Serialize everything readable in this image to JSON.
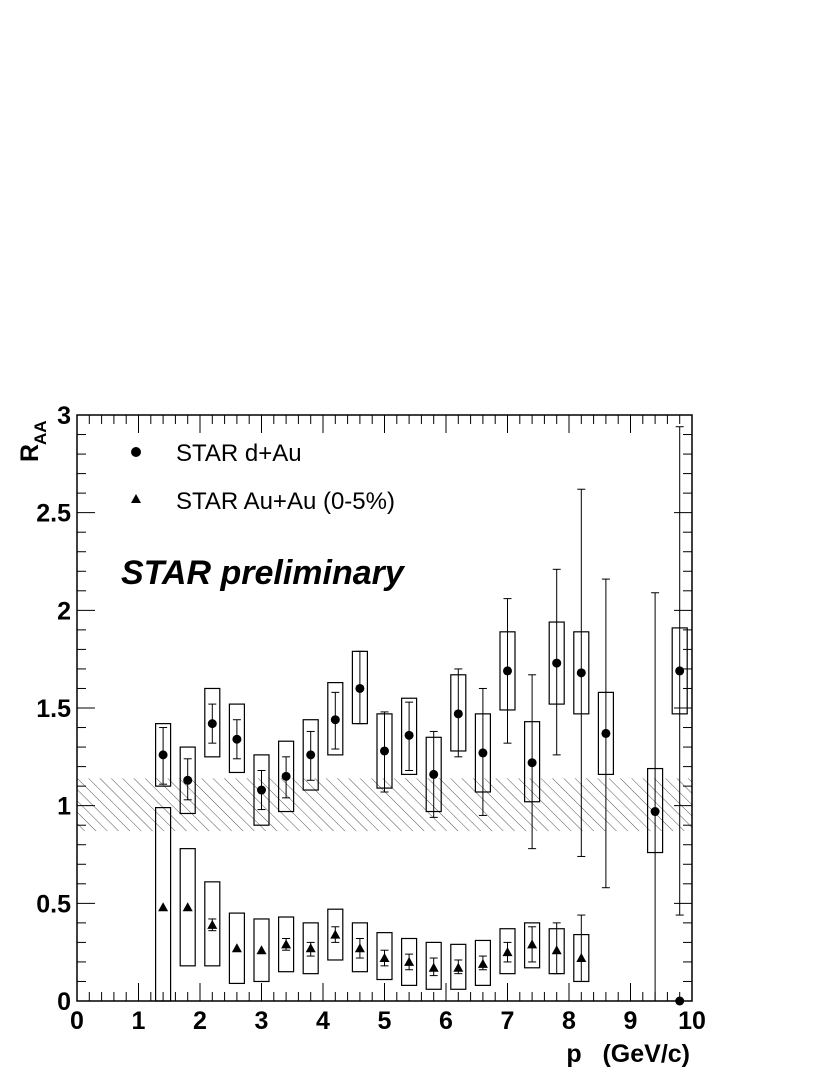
{
  "chart_data": {
    "type": "scatter",
    "ylabel_main": "R",
    "ylabel_sub": "AA",
    "xlabel": "p   (GeV/c)",
    "xlim": [
      0,
      10
    ],
    "ylim": [
      0,
      3
    ],
    "x_ticks": [
      "0",
      "1",
      "2",
      "3",
      "4",
      "5",
      "6",
      "7",
      "8",
      "9",
      "10"
    ],
    "y_ticks": [
      "0",
      "0.5",
      "1",
      "1.5",
      "2",
      "2.5",
      "3"
    ],
    "annotation": "STAR preliminary",
    "normalization_band": {
      "y_low": 0.87,
      "y_high": 1.14
    },
    "series": [
      {
        "name": "STAR d+Au",
        "marker": "circle",
        "points": [
          {
            "x": 1.4,
            "y": 1.26,
            "stat_lo": 1.11,
            "stat_hi": 1.4,
            "sys_lo": 1.1,
            "sys_hi": 1.42
          },
          {
            "x": 1.8,
            "y": 1.13,
            "stat_lo": 1.03,
            "stat_hi": 1.24,
            "sys_lo": 0.96,
            "sys_hi": 1.3
          },
          {
            "x": 2.2,
            "y": 1.42,
            "stat_lo": 1.32,
            "stat_hi": 1.52,
            "sys_lo": 1.25,
            "sys_hi": 1.6
          },
          {
            "x": 2.6,
            "y": 1.34,
            "stat_lo": 1.24,
            "stat_hi": 1.44,
            "sys_lo": 1.17,
            "sys_hi": 1.52
          },
          {
            "x": 3.0,
            "y": 1.08,
            "stat_lo": 0.98,
            "stat_hi": 1.18,
            "sys_lo": 0.9,
            "sys_hi": 1.26
          },
          {
            "x": 3.4,
            "y": 1.15,
            "stat_lo": 1.04,
            "stat_hi": 1.25,
            "sys_lo": 0.97,
            "sys_hi": 1.33
          },
          {
            "x": 3.8,
            "y": 1.26,
            "stat_lo": 1.13,
            "stat_hi": 1.38,
            "sys_lo": 1.08,
            "sys_hi": 1.44
          },
          {
            "x": 4.2,
            "y": 1.44,
            "stat_lo": 1.29,
            "stat_hi": 1.58,
            "sys_lo": 1.26,
            "sys_hi": 1.63
          },
          {
            "x": 4.6,
            "y": 1.6,
            "stat_lo": 1.42,
            "stat_hi": 1.79,
            "sys_lo": 1.42,
            "sys_hi": 1.79
          },
          {
            "x": 5.0,
            "y": 1.28,
            "stat_lo": 1.07,
            "stat_hi": 1.48,
            "sys_lo": 1.09,
            "sys_hi": 1.47
          },
          {
            "x": 5.4,
            "y": 1.36,
            "stat_lo": 1.18,
            "stat_hi": 1.53,
            "sys_lo": 1.16,
            "sys_hi": 1.55
          },
          {
            "x": 5.8,
            "y": 1.16,
            "stat_lo": 0.94,
            "stat_hi": 1.38,
            "sys_lo": 0.97,
            "sys_hi": 1.35
          },
          {
            "x": 6.2,
            "y": 1.47,
            "stat_lo": 1.25,
            "stat_hi": 1.7,
            "sys_lo": 1.28,
            "sys_hi": 1.67
          },
          {
            "x": 6.6,
            "y": 1.27,
            "stat_lo": 0.95,
            "stat_hi": 1.6,
            "sys_lo": 1.07,
            "sys_hi": 1.47
          },
          {
            "x": 7.0,
            "y": 1.69,
            "stat_lo": 1.32,
            "stat_hi": 2.06,
            "sys_lo": 1.49,
            "sys_hi": 1.89
          },
          {
            "x": 7.4,
            "y": 1.22,
            "stat_lo": 0.78,
            "stat_hi": 1.67,
            "sys_lo": 1.02,
            "sys_hi": 1.43
          },
          {
            "x": 7.8,
            "y": 1.73,
            "stat_lo": 1.26,
            "stat_hi": 2.21,
            "sys_lo": 1.52,
            "sys_hi": 1.94
          },
          {
            "x": 8.2,
            "y": 1.68,
            "stat_lo": 0.74,
            "stat_hi": 2.62,
            "sys_lo": 1.47,
            "sys_hi": 1.89
          },
          {
            "x": 8.6,
            "y": 1.37,
            "stat_lo": 0.58,
            "stat_hi": 2.16,
            "sys_lo": 1.16,
            "sys_hi": 1.58
          },
          {
            "x": 9.4,
            "y": 0.97,
            "stat_lo": 0.0,
            "stat_hi": 2.09,
            "sys_lo": 0.76,
            "sys_hi": 1.19
          },
          {
            "x": 9.8,
            "y": 1.69,
            "stat_lo": 0.44,
            "stat_hi": 2.94,
            "sys_lo": 1.47,
            "sys_hi": 1.91
          },
          {
            "x": 9.8,
            "y": 0.0
          }
        ]
      },
      {
        "name": "STAR Au+Au (0-5%)",
        "marker": "triangle",
        "points": [
          {
            "x": 1.4,
            "y": 0.48,
            "sys_lo": 0.0,
            "sys_hi": 0.99
          },
          {
            "x": 1.8,
            "y": 0.48,
            "sys_lo": 0.18,
            "sys_hi": 0.78
          },
          {
            "x": 2.2,
            "y": 0.39,
            "stat_lo": 0.36,
            "stat_hi": 0.42,
            "sys_lo": 0.18,
            "sys_hi": 0.61
          },
          {
            "x": 2.6,
            "y": 0.27,
            "sys_lo": 0.09,
            "sys_hi": 0.45
          },
          {
            "x": 3.0,
            "y": 0.26,
            "sys_lo": 0.1,
            "sys_hi": 0.42
          },
          {
            "x": 3.4,
            "y": 0.29,
            "stat_lo": 0.26,
            "stat_hi": 0.32,
            "sys_lo": 0.15,
            "sys_hi": 0.43
          },
          {
            "x": 3.8,
            "y": 0.27,
            "stat_lo": 0.23,
            "stat_hi": 0.3,
            "sys_lo": 0.14,
            "sys_hi": 0.4
          },
          {
            "x": 4.2,
            "y": 0.34,
            "stat_lo": 0.3,
            "stat_hi": 0.38,
            "sys_lo": 0.21,
            "sys_hi": 0.47
          },
          {
            "x": 4.6,
            "y": 0.27,
            "stat_lo": 0.22,
            "stat_hi": 0.32,
            "sys_lo": 0.15,
            "sys_hi": 0.4
          },
          {
            "x": 5.0,
            "y": 0.22,
            "stat_lo": 0.18,
            "stat_hi": 0.26,
            "sys_lo": 0.11,
            "sys_hi": 0.35
          },
          {
            "x": 5.4,
            "y": 0.2,
            "stat_lo": 0.16,
            "stat_hi": 0.24,
            "sys_lo": 0.08,
            "sys_hi": 0.32
          },
          {
            "x": 5.8,
            "y": 0.17,
            "stat_lo": 0.13,
            "stat_hi": 0.22,
            "sys_lo": 0.06,
            "sys_hi": 0.3
          },
          {
            "x": 6.2,
            "y": 0.17,
            "stat_lo": 0.14,
            "stat_hi": 0.21,
            "sys_lo": 0.06,
            "sys_hi": 0.29
          },
          {
            "x": 6.6,
            "y": 0.19,
            "stat_lo": 0.16,
            "stat_hi": 0.23,
            "sys_lo": 0.08,
            "sys_hi": 0.31
          },
          {
            "x": 7.0,
            "y": 0.25,
            "stat_lo": 0.2,
            "stat_hi": 0.3,
            "sys_lo": 0.14,
            "sys_hi": 0.37
          },
          {
            "x": 7.4,
            "y": 0.29,
            "stat_lo": 0.2,
            "stat_hi": 0.38,
            "sys_lo": 0.17,
            "sys_hi": 0.4
          },
          {
            "x": 7.8,
            "y": 0.26,
            "stat_lo": 0.14,
            "stat_hi": 0.4,
            "sys_lo": 0.14,
            "sys_hi": 0.37
          },
          {
            "x": 8.2,
            "y": 0.22,
            "stat_lo": 0.1,
            "stat_hi": 0.44,
            "sys_lo": 0.1,
            "sys_hi": 0.34
          }
        ]
      }
    ]
  }
}
